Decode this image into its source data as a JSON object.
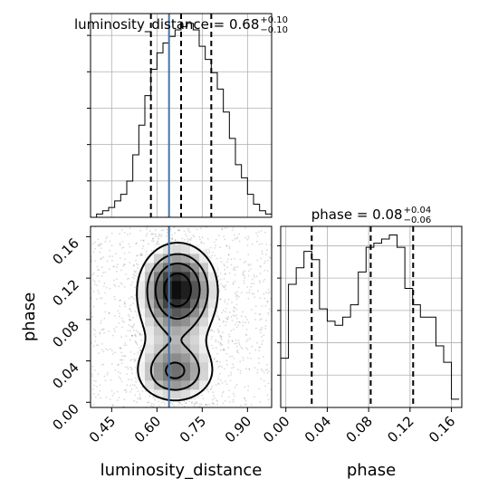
{
  "chart_data": [
    {
      "panel": "luminosity_distance-marginal",
      "type": "histogram",
      "title": {
        "text": "luminosity_distance = 0.68",
        "upper": "+0.10",
        "lower": "−0.10"
      },
      "xlim": [
        0.38,
        0.98
      ],
      "bin_edges": [
        0.38,
        0.4,
        0.42,
        0.44,
        0.46,
        0.48,
        0.5,
        0.52,
        0.54,
        0.56,
        0.58,
        0.6,
        0.62,
        0.64,
        0.66,
        0.68,
        0.7,
        0.72,
        0.74,
        0.76,
        0.78,
        0.8,
        0.82,
        0.84,
        0.86,
        0.88,
        0.9,
        0.92,
        0.94,
        0.96,
        0.98
      ],
      "counts": [
        0,
        1,
        2,
        3,
        5,
        7,
        11,
        19,
        28,
        37,
        45,
        50,
        53,
        55,
        57,
        58,
        59,
        57,
        52,
        48,
        44,
        39,
        32,
        24,
        16,
        12,
        7,
        4,
        2,
        1
      ],
      "quantiles": [
        0.58,
        0.68,
        0.78
      ],
      "truth": 0.64,
      "grid": true
    },
    {
      "panel": "phase-marginal",
      "type": "histogram",
      "title": {
        "text": "phase = 0.08",
        "upper": "+0.04",
        "lower": "−0.06"
      },
      "xlim": [
        -0.005,
        0.17
      ],
      "bin_edges": [
        -0.005,
        0.0025,
        0.01,
        0.0175,
        0.025,
        0.0325,
        0.04,
        0.0475,
        0.055,
        0.0625,
        0.07,
        0.0775,
        0.085,
        0.0925,
        0.1,
        0.1075,
        0.115,
        0.1225,
        0.13,
        0.1375,
        0.145,
        0.1525,
        0.16,
        0.1675
      ],
      "counts": [
        12,
        30,
        34,
        38,
        36,
        24,
        21,
        20,
        22,
        25,
        33,
        39,
        40,
        41,
        42,
        39,
        29,
        25,
        22,
        22,
        15,
        11,
        2
      ],
      "quantiles": [
        0.025,
        0.082,
        0.123
      ],
      "grid": true
    },
    {
      "panel": "luminosity_distance-phase-joint",
      "type": "heatmap",
      "xlabel": "luminosity_distance",
      "ylabel": "phase",
      "xlim": [
        0.38,
        0.98
      ],
      "ylim": [
        -0.005,
        0.17
      ],
      "x_ticks": [
        "0.45",
        "0.60",
        "0.75",
        "0.90"
      ],
      "x_tick_values": [
        0.45,
        0.6,
        0.75,
        0.9
      ],
      "y_ticks": [
        "0.00",
        "0.04",
        "0.08",
        "0.12",
        "0.16"
      ],
      "y_tick_values": [
        0.0,
        0.04,
        0.08,
        0.12,
        0.16
      ],
      "density_components": [
        {
          "cx": 0.67,
          "cy": 0.112,
          "sx": 0.075,
          "sy": 0.025,
          "weight": 1.0
        },
        {
          "cx": 0.66,
          "cy": 0.028,
          "sx": 0.08,
          "sy": 0.017,
          "weight": 0.62
        },
        {
          "cx": 0.66,
          "cy": 0.07,
          "sx": 0.1,
          "sy": 0.045,
          "weight": 0.35
        }
      ],
      "truth_x": 0.64,
      "contour_levels": [
        0.3,
        0.55,
        0.8,
        1.05
      ]
    },
    {
      "panel": "phase-xaxis",
      "xlabel": "phase",
      "x_ticks": [
        "0.00",
        "0.04",
        "0.08",
        "0.12",
        "0.16"
      ],
      "x_tick_values": [
        0.0,
        0.04,
        0.08,
        0.12,
        0.16
      ]
    }
  ]
}
